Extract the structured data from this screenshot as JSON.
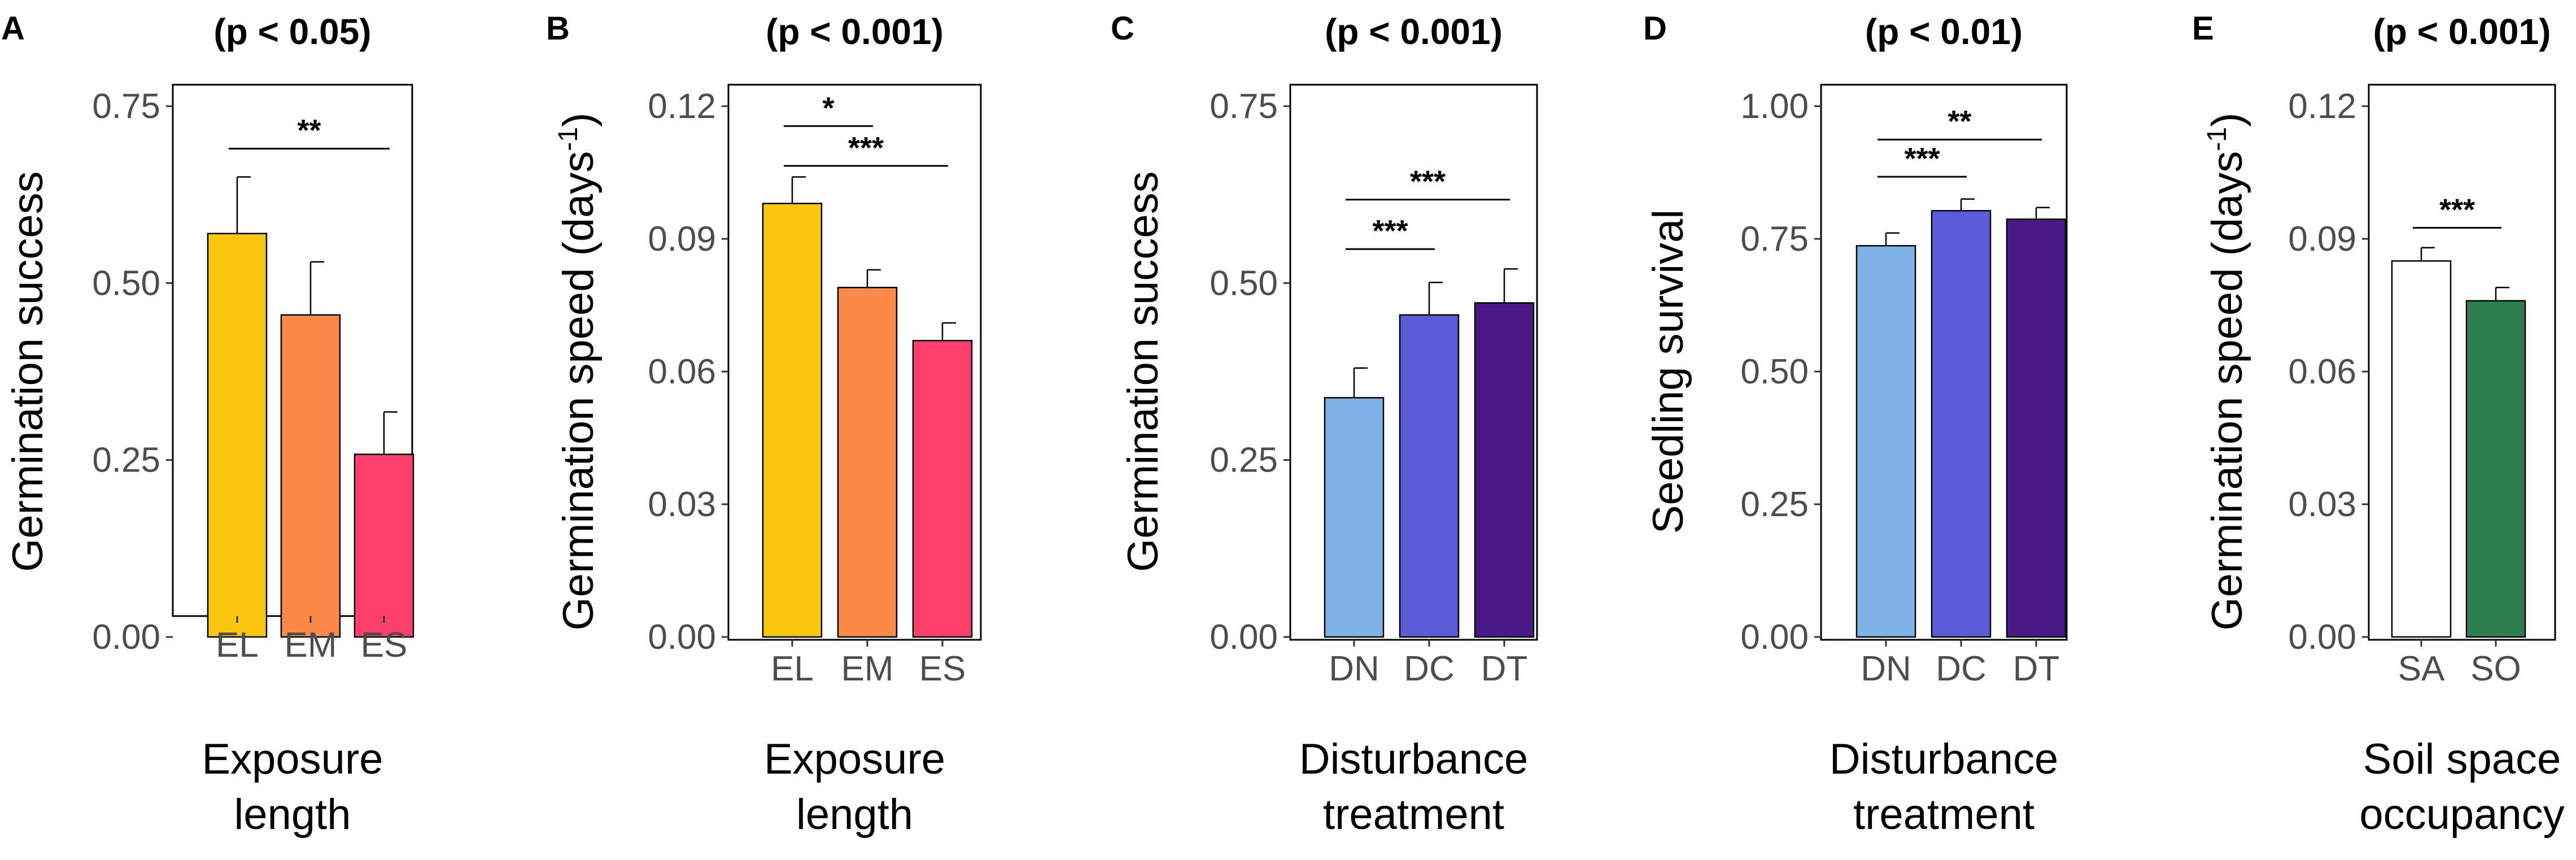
{
  "figure_title": "",
  "chart_data": [
    {
      "panel": "A",
      "type": "bar",
      "title": "(p < 0.05)",
      "xlabel_lines": [
        "Exposure",
        "length"
      ],
      "ylabel": "Germination success",
      "ylabel_sup": "",
      "ylabel_close": "",
      "ylim": [
        0,
        0.75
      ],
      "yticks": [
        "0.00",
        "0.25",
        "0.50",
        "0.75"
      ],
      "ytick_values": [
        0,
        0.25,
        0.5,
        0.75
      ],
      "categories": [
        "EL",
        "EM",
        "ES"
      ],
      "values": [
        0.57,
        0.455,
        0.258
      ],
      "errors": [
        0.08,
        0.075,
        0.06
      ],
      "colors": [
        "#F9C80E",
        "#FC8A46",
        "#FF3F6B"
      ],
      "comparisons": [
        {
          "from": 0,
          "to": 2,
          "label": "**",
          "y": 0.69
        }
      ]
    },
    {
      "panel": "B",
      "type": "bar",
      "title": "(p < 0.001)",
      "xlabel_lines": [
        "Exposure",
        "length"
      ],
      "ylabel": "Germination speed (days",
      "ylabel_sup": "-1",
      "ylabel_close": ")",
      "ylim": [
        0,
        0.12
      ],
      "yticks": [
        "0.00",
        "0.03",
        "0.06",
        "0.09",
        "0.12"
      ],
      "ytick_values": [
        0,
        0.03,
        0.06,
        0.09,
        0.12
      ],
      "categories": [
        "EL",
        "EM",
        "ES"
      ],
      "values": [
        0.098,
        0.079,
        0.067
      ],
      "errors": [
        0.006,
        0.004,
        0.004
      ],
      "colors": [
        "#F9C80E",
        "#FC8A46",
        "#FF3F6B"
      ],
      "comparisons": [
        {
          "from": 0,
          "to": 1,
          "label": "*",
          "y": 0.1155
        },
        {
          "from": 0,
          "to": 2,
          "label": "***",
          "y": 0.1065
        }
      ]
    },
    {
      "panel": "C",
      "type": "bar",
      "title": "(p < 0.001)",
      "xlabel_lines": [
        "Disturbance",
        "treatment"
      ],
      "ylabel": "Germination success",
      "ylabel_sup": "",
      "ylabel_close": "",
      "ylim": [
        0,
        0.75
      ],
      "yticks": [
        "0.00",
        "0.25",
        "0.50",
        "0.75"
      ],
      "ytick_values": [
        0,
        0.25,
        0.5,
        0.75
      ],
      "categories": [
        "DN",
        "DC",
        "DT"
      ],
      "values": [
        0.338,
        0.455,
        0.472
      ],
      "errors": [
        0.042,
        0.046,
        0.048
      ],
      "colors": [
        "#7FB3E5",
        "#5B5DD6",
        "#4A1A88"
      ],
      "comparisons": [
        {
          "from": 0,
          "to": 1,
          "label": "***",
          "y": 0.548
        },
        {
          "from": 0,
          "to": 2,
          "label": "***",
          "y": 0.618
        }
      ]
    },
    {
      "panel": "D",
      "type": "bar",
      "title": "(p < 0.01)",
      "xlabel_lines": [
        "Disturbance",
        "treatment"
      ],
      "ylabel": "Seedling survival",
      "ylabel_sup": "",
      "ylabel_close": "",
      "ylim": [
        0,
        1.0
      ],
      "yticks": [
        "0.00",
        "0.25",
        "0.50",
        "0.75",
        "1.00"
      ],
      "ytick_values": [
        0,
        0.25,
        0.5,
        0.75,
        1.0
      ],
      "categories": [
        "DN",
        "DC",
        "DT"
      ],
      "values": [
        0.737,
        0.803,
        0.787
      ],
      "errors": [
        0.024,
        0.022,
        0.022
      ],
      "colors": [
        "#7FB3E5",
        "#5B5DD6",
        "#4A1A88"
      ],
      "comparisons": [
        {
          "from": 0,
          "to": 1,
          "label": "***",
          "y": 0.867
        },
        {
          "from": 0,
          "to": 2,
          "label": "**",
          "y": 0.937
        }
      ]
    },
    {
      "panel": "E",
      "type": "bar",
      "title": "(p < 0.001)",
      "xlabel_lines": [
        "Soil space",
        "occupancy"
      ],
      "ylabel": "Germination speed (days",
      "ylabel_sup": "-1",
      "ylabel_close": ")",
      "ylim": [
        0,
        0.12
      ],
      "yticks": [
        "0.00",
        "0.03",
        "0.06",
        "0.09",
        "0.12"
      ],
      "ytick_values": [
        0,
        0.03,
        0.06,
        0.09,
        0.12
      ],
      "categories": [
        "SA",
        "SO"
      ],
      "values": [
        0.085,
        0.076
      ],
      "errors": [
        0.003,
        0.003
      ],
      "colors": [
        "#FFFFFF",
        "#2E7D4F"
      ],
      "comparisons": [
        {
          "from": 0,
          "to": 1,
          "label": "***",
          "y": 0.0925
        }
      ]
    }
  ]
}
